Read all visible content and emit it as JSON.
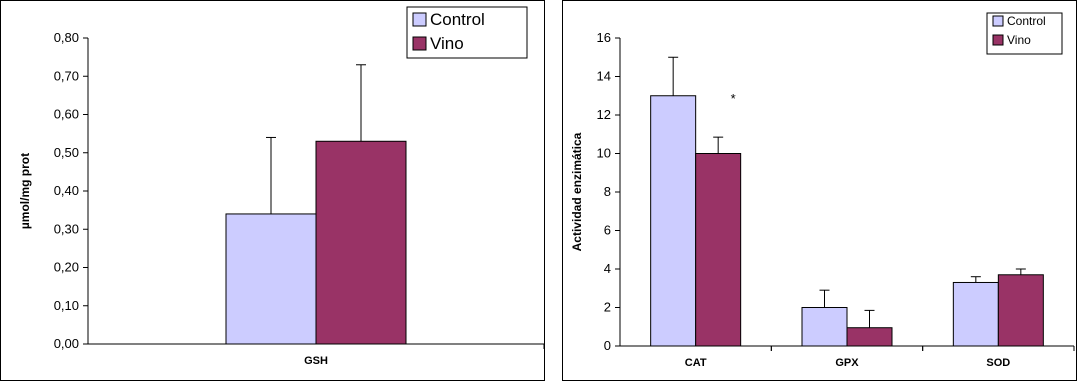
{
  "colors": {
    "control": "#CCCCFF",
    "vino": "#993366"
  },
  "chart_data": [
    {
      "type": "bar",
      "title": "",
      "xlabel": "",
      "ylabel": "µmol/mg prot",
      "ylim": [
        0,
        0.8
      ],
      "yticks": [
        0,
        0.1,
        0.2,
        0.3,
        0.4,
        0.5,
        0.6,
        0.7,
        0.8
      ],
      "ytick_labels": [
        "0,00",
        "0,10",
        "0,20",
        "0,30",
        "0,40",
        "0,50",
        "0,60",
        "0,70",
        "0,80"
      ],
      "categories": [
        "GSH"
      ],
      "series": [
        {
          "name": "Control",
          "values": [
            0.34
          ],
          "error": [
            0.2
          ]
        },
        {
          "name": "Vino",
          "values": [
            0.53
          ],
          "error": [
            0.2
          ]
        }
      ],
      "legend_position": "top-right",
      "grid": false,
      "annotations": []
    },
    {
      "type": "bar",
      "title": "",
      "xlabel": "",
      "ylabel": "Actividad enzimática",
      "ylim": [
        0,
        16
      ],
      "yticks": [
        0,
        2,
        4,
        6,
        8,
        10,
        12,
        14,
        16
      ],
      "ytick_labels": [
        "0",
        "2",
        "4",
        "6",
        "8",
        "10",
        "12",
        "14",
        "16"
      ],
      "categories": [
        "CAT",
        "GPX",
        "SOD"
      ],
      "series": [
        {
          "name": "Control",
          "values": [
            13.0,
            2.0,
            3.3
          ],
          "error": [
            2.0,
            0.9,
            0.3
          ]
        },
        {
          "name": "Vino",
          "values": [
            10.0,
            0.95,
            3.7
          ],
          "error": [
            0.85,
            0.9,
            0.3
          ]
        }
      ],
      "legend_position": "top-right",
      "grid": false,
      "annotations": [
        {
          "text": "*",
          "category": "CAT",
          "series": "Vino"
        }
      ]
    }
  ]
}
